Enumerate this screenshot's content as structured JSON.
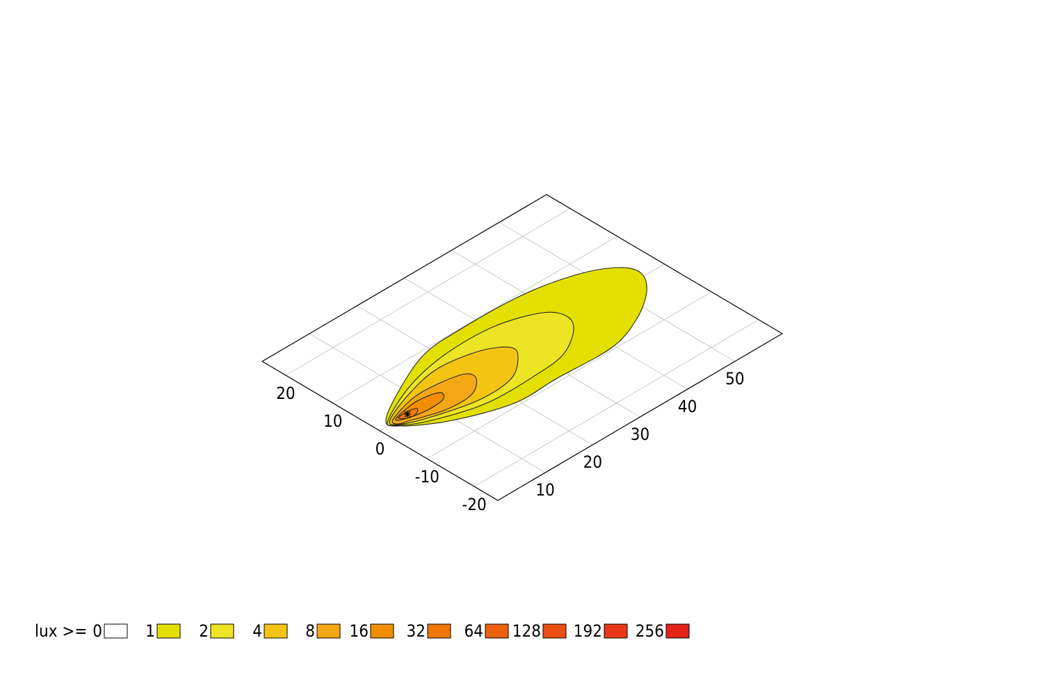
{
  "chart_data": {
    "type": "isolux",
    "xlim": [
      0,
      60
    ],
    "xticks": [
      10,
      20,
      30,
      40,
      50
    ],
    "ylim": [
      -25,
      25
    ],
    "yticks": [
      -20,
      -10,
      0,
      10,
      20
    ],
    "grid": true,
    "legend": {
      "label": "lux >=",
      "levels": [
        0,
        1,
        2,
        4,
        8,
        16,
        32,
        64,
        128,
        192,
        256
      ],
      "colors": [
        "#ffffff",
        "#e3e000",
        "#ece424",
        "#f3c512",
        "#f4a714",
        "#f08e00",
        "#ee780a",
        "#ec620f",
        "#ea4f14",
        "#e83817",
        "#e42318"
      ]
    }
  }
}
